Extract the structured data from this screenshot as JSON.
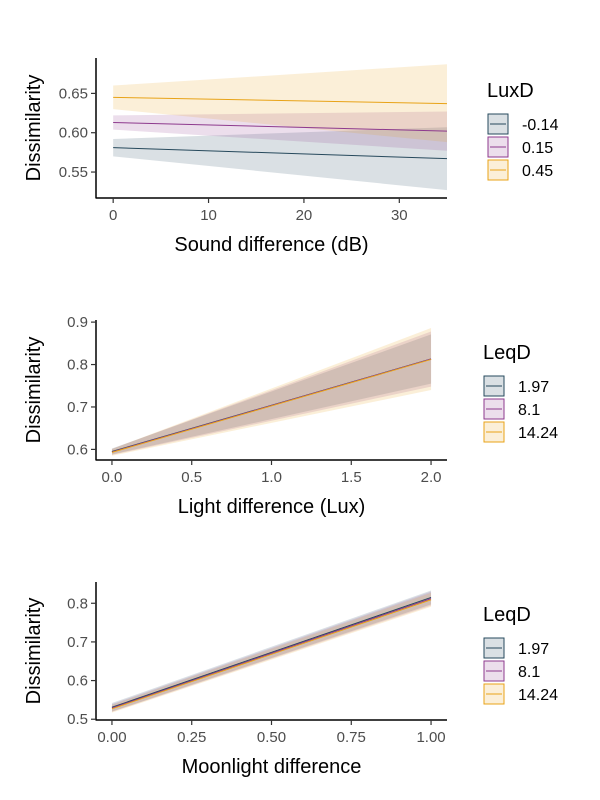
{
  "chart_data": [
    {
      "type": "line",
      "xlabel": "Sound difference (dB)",
      "ylabel": "Dissimilarity",
      "xlim": [
        -1.8,
        35.0
      ],
      "ylim": [
        0.517,
        0.695
      ],
      "xticks": [
        0,
        10,
        20,
        30
      ],
      "xtick_labels": [
        "0",
        "10",
        "20",
        "30"
      ],
      "yticks": [
        0.55,
        0.6,
        0.65
      ],
      "ytick_labels": [
        "0.55",
        "0.60",
        "0.65"
      ],
      "grid": false,
      "legend": {
        "title": "LuxD",
        "placement": "right"
      },
      "series": [
        {
          "name": "-0.14",
          "color": "#26495c",
          "x": [
            0,
            35
          ],
          "y": [
            0.581,
            0.567
          ],
          "lower": [
            0.57,
            0.527
          ],
          "upper": [
            0.592,
            0.607
          ]
        },
        {
          "name": "0.15",
          "color": "#8e3a8e",
          "x": [
            0,
            35
          ],
          "y": [
            0.613,
            0.602
          ],
          "lower": [
            0.604,
            0.577
          ],
          "upper": [
            0.622,
            0.627
          ]
        },
        {
          "name": "0.45",
          "color": "#e8a317",
          "x": [
            0,
            35
          ],
          "y": [
            0.645,
            0.637
          ],
          "lower": [
            0.63,
            0.588
          ],
          "upper": [
            0.66,
            0.687
          ]
        }
      ]
    },
    {
      "type": "line",
      "xlabel": "Light difference (Lux)",
      "ylabel": "Dissimilarity",
      "xlim": [
        -0.1,
        2.1
      ],
      "ylim": [
        0.575,
        0.905
      ],
      "xticks": [
        0.0,
        0.5,
        1.0,
        1.5,
        2.0
      ],
      "xtick_labels": [
        "0.0",
        "0.5",
        "1.0",
        "1.5",
        "2.0"
      ],
      "yticks": [
        0.6,
        0.7,
        0.8,
        0.9
      ],
      "ytick_labels": [
        "0.6",
        "0.7",
        "0.8",
        "0.9"
      ],
      "grid": false,
      "legend": {
        "title": "LeqD",
        "placement": "right"
      },
      "series": [
        {
          "name": "1.97",
          "color": "#26495c",
          "x": [
            0,
            2
          ],
          "y": [
            0.595,
            0.813
          ],
          "lower": [
            0.588,
            0.755
          ],
          "upper": [
            0.602,
            0.871
          ]
        },
        {
          "name": "8.1",
          "color": "#8e3a8e",
          "x": [
            0,
            2
          ],
          "y": [
            0.594,
            0.813
          ],
          "lower": [
            0.587,
            0.748
          ],
          "upper": [
            0.601,
            0.878
          ]
        },
        {
          "name": "14.24",
          "color": "#e8a317",
          "x": [
            0,
            2
          ],
          "y": [
            0.593,
            0.812
          ],
          "lower": [
            0.585,
            0.74
          ],
          "upper": [
            0.601,
            0.886
          ]
        }
      ]
    },
    {
      "type": "line",
      "xlabel": "Moonlight difference",
      "ylabel": "Dissimilarity",
      "xlim": [
        -0.05,
        1.05
      ],
      "ylim": [
        0.498,
        0.855
      ],
      "xticks": [
        0.0,
        0.25,
        0.5,
        0.75,
        1.0
      ],
      "xtick_labels": [
        "0.00",
        "0.25",
        "0.50",
        "0.75",
        "1.00"
      ],
      "yticks": [
        0.5,
        0.6,
        0.7,
        0.8
      ],
      "ytick_labels": [
        "0.5",
        "0.6",
        "0.7",
        "0.8"
      ],
      "grid": false,
      "legend": {
        "title": "LeqD",
        "placement": "right"
      },
      "series": [
        {
          "name": "1.97",
          "color": "#26495c",
          "x": [
            0,
            1
          ],
          "y": [
            0.531,
            0.815
          ],
          "lower": [
            0.52,
            0.797
          ],
          "upper": [
            0.542,
            0.833
          ]
        },
        {
          "name": "8.1",
          "color": "#8e3a8e",
          "x": [
            0,
            1
          ],
          "y": [
            0.529,
            0.812
          ],
          "lower": [
            0.519,
            0.794
          ],
          "upper": [
            0.539,
            0.83
          ]
        },
        {
          "name": "14.24",
          "color": "#e8a317",
          "x": [
            0,
            1
          ],
          "y": [
            0.527,
            0.809
          ],
          "lower": [
            0.517,
            0.791
          ],
          "upper": [
            0.537,
            0.827
          ]
        }
      ]
    }
  ]
}
